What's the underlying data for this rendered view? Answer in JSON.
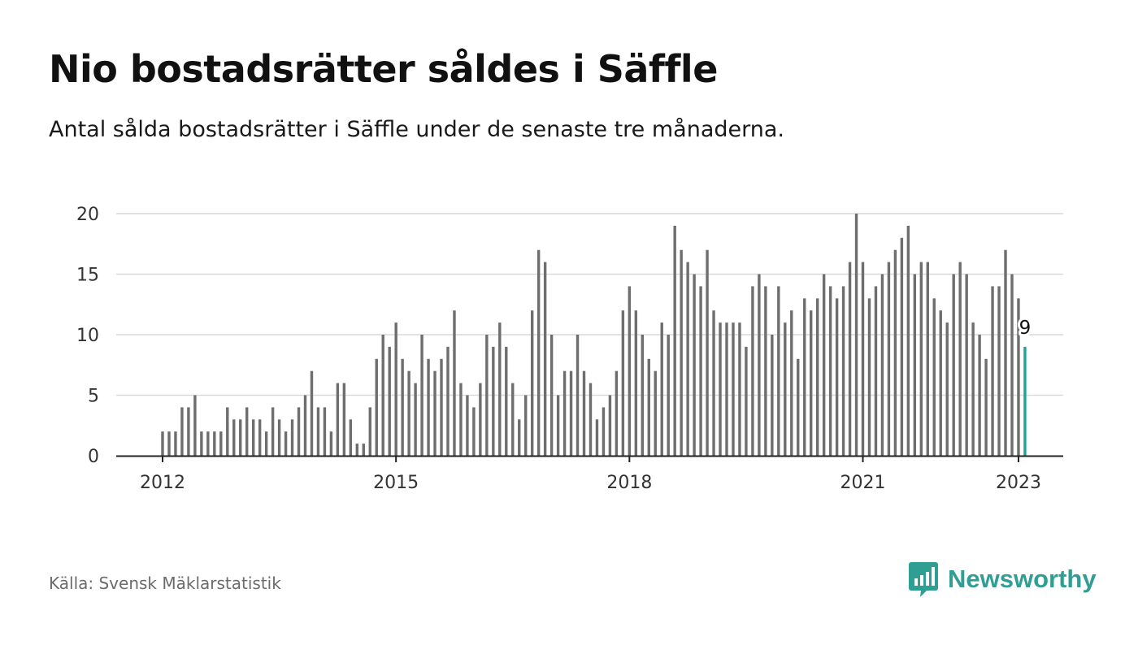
{
  "title": "Nio bostadsrätter såldes i Säffle",
  "subtitle": "Antal sålda bostadsrätter i Säffle under de senaste tre månaderna.",
  "source": "Källa: Svensk Mäklarstatistik",
  "brand": {
    "name": "Newsworthy",
    "logo_icon": "bar-chart-speech-bubble-icon",
    "color": "#2f9e93"
  },
  "chart_data": {
    "type": "bar",
    "x_start": "2012-01",
    "frequency": "monthly",
    "x_ticks": [
      "2012",
      "2015",
      "2018",
      "2021",
      "2023"
    ],
    "y_ticks": [
      0,
      5,
      10,
      15,
      20
    ],
    "ylim": [
      0,
      20
    ],
    "grid": true,
    "bar_color": "#6e6e6e",
    "highlight_color": "#1fa39a",
    "highlight_label": "9",
    "values": [
      2,
      2,
      2,
      4,
      4,
      5,
      2,
      2,
      2,
      2,
      4,
      3,
      3,
      4,
      3,
      3,
      2,
      4,
      3,
      2,
      3,
      4,
      5,
      7,
      4,
      4,
      2,
      6,
      6,
      3,
      1,
      1,
      4,
      8,
      10,
      9,
      11,
      8,
      7,
      6,
      10,
      8,
      7,
      8,
      9,
      12,
      6,
      5,
      4,
      6,
      10,
      9,
      11,
      9,
      6,
      3,
      5,
      12,
      17,
      16,
      10,
      5,
      7,
      7,
      10,
      7,
      6,
      3,
      4,
      5,
      7,
      12,
      14,
      12,
      10,
      8,
      7,
      11,
      10,
      19,
      17,
      16,
      15,
      14,
      17,
      12,
      11,
      11,
      11,
      11,
      9,
      14,
      15,
      14,
      10,
      14,
      11,
      12,
      8,
      13,
      12,
      13,
      15,
      14,
      13,
      14,
      16,
      20,
      16,
      13,
      14,
      15,
      16,
      17,
      18,
      19,
      15,
      16,
      16,
      13,
      12,
      11,
      15,
      16,
      15,
      11,
      10,
      8,
      14,
      14,
      17,
      15,
      13,
      9
    ]
  }
}
